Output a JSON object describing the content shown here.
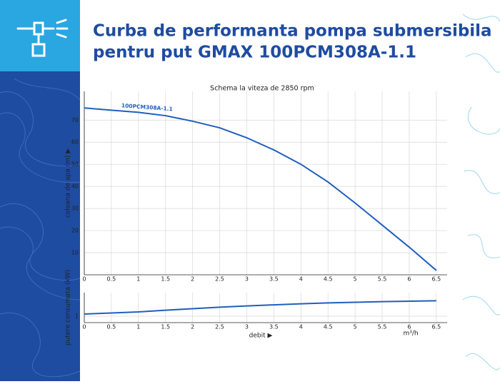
{
  "header": {
    "title": [
      "Curba de performanta pompa submersibila",
      "pentru put GMAX 100PCM308A-1.1"
    ]
  },
  "chart_data": [
    {
      "type": "line",
      "title": "Schema la viteza de 2850 rpm",
      "ylabel": "coloana de apa (m) ▶",
      "x": [
        0,
        0.5,
        1,
        1.5,
        2,
        2.5,
        3,
        3.5,
        4,
        4.5,
        5,
        5.5,
        6,
        6.5
      ],
      "series": [
        {
          "name": "100PCM308A-1.1",
          "color": "#1f5fbf",
          "values": [
            75.5,
            74.5,
            73.5,
            72,
            69.5,
            66.5,
            62,
            56.5,
            50,
            42,
            32.5,
            22.5,
            12.5,
            2
          ]
        }
      ],
      "xlim": [
        0,
        6.7
      ],
      "xticks": [
        0,
        0.5,
        1,
        1.5,
        2,
        2.5,
        3,
        3.5,
        4,
        4.5,
        5,
        5.5,
        6,
        6.5
      ],
      "ylim": [
        0,
        83
      ],
      "yticks": [
        10,
        20,
        30,
        40,
        50,
        60,
        70
      ],
      "grid": true
    },
    {
      "type": "line",
      "ylabel": "putere consumata (kW)",
      "xlabel": "debit ▶",
      "xunit": "m³/h",
      "x": [
        0,
        0.5,
        1,
        1.5,
        2,
        2.5,
        3,
        3.5,
        4,
        4.5,
        5,
        5.5,
        6,
        6.5
      ],
      "series": [
        {
          "color": "#1f5fbf",
          "values": [
            1.1,
            1.15,
            1.2,
            1.28,
            1.35,
            1.42,
            1.48,
            1.53,
            1.58,
            1.62,
            1.65,
            1.68,
            1.7,
            1.72
          ]
        }
      ],
      "xlim": [
        0,
        6.7
      ],
      "xticks": [
        0,
        0.5,
        1,
        1.5,
        2,
        2.5,
        3,
        3.5,
        4,
        4.5,
        5,
        5.5,
        6,
        6.5
      ],
      "ylim": [
        0.7,
        2.1
      ],
      "yticks": [
        1
      ],
      "grid": true
    }
  ]
}
